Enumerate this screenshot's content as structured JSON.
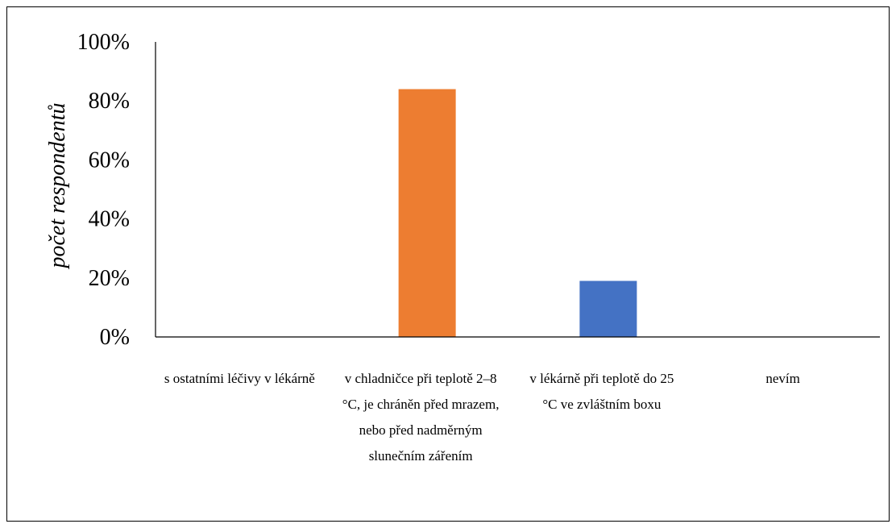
{
  "chart_data": {
    "type": "bar",
    "title": "",
    "xlabel": "",
    "ylabel": "počet respondentů",
    "categories": [
      "s ostatními léčivy v lékárně",
      "v chladničce při teplotě 2–8 °C, je chráněn před mrazem, nebo před nadměrným slunečním zářením",
      "v lékárně při teplotě do 25 °C ve zvláštním boxu",
      "nevím"
    ],
    "values": [
      0,
      84,
      19,
      0
    ],
    "unit": "%",
    "bar_colors": [
      "#ED7D31",
      "#ED7D31",
      "#4472C4",
      "#4472C4"
    ],
    "ylim": [
      0,
      100
    ],
    "yticks": [
      0,
      20,
      40,
      60,
      80,
      100
    ],
    "ytick_labels": [
      "0%",
      "20%",
      "40%",
      "60%",
      "80%",
      "100%"
    ],
    "grid": false,
    "legend": "none"
  }
}
